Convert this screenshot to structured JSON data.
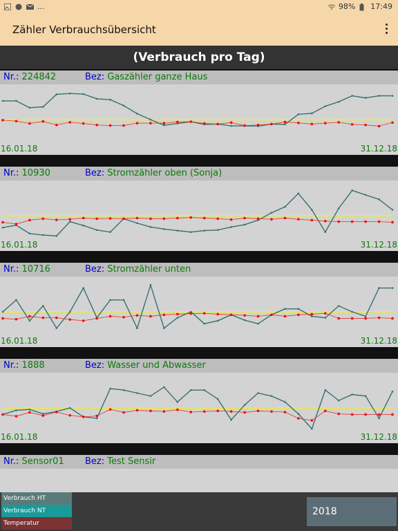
{
  "statusbar": {
    "left_text": "...",
    "battery": "98%",
    "time": "17:49"
  },
  "app": {
    "title": "Zähler Verbrauchsübersicht"
  },
  "view": {
    "header": "(Verbrauch pro Tag)"
  },
  "labels": {
    "nr": "Nr.:",
    "bez": "Bez:"
  },
  "meters": [
    {
      "nr": "224842",
      "bez": "Gaszähler ganze Haus",
      "date_start": "16.01.18",
      "date_end": "31.12.18",
      "chart_data": {
        "type": "line",
        "series": [
          {
            "key": "verbrauch",
            "color": "#3a6f6f",
            "values": [
              63,
              63,
              40,
              43,
              85,
              88,
              86,
              70,
              67,
              47,
              20,
              0,
              -19,
              -13,
              -7,
              -16,
              -15,
              -21,
              -21,
              -22,
              -15,
              -16,
              18,
              21,
              45,
              60,
              80,
              73,
              80,
              80
            ]
          },
          {
            "key": "temperatur",
            "color": "#e03030",
            "values": [
              -2,
              -5,
              -13,
              -6,
              -18,
              -9,
              -13,
              -18,
              -20,
              -20,
              -12,
              -12,
              -12,
              -8,
              -7,
              -13,
              -15,
              -10,
              -20,
              -18,
              -15,
              -8,
              -11,
              -15,
              -12,
              -9,
              -16,
              -18,
              -22,
              -10
            ]
          }
        ],
        "ylim": [
          -100,
          100
        ]
      }
    },
    {
      "nr": "10930",
      "bez": "Stromzähler oben (Sonja)",
      "date_start": "16.01.18",
      "date_end": "31.12.18",
      "chart_data": {
        "type": "line",
        "series": [
          {
            "key": "verbrauch",
            "color": "#3a6f6f",
            "values": [
              -40,
              -32,
              -60,
              -65,
              -68,
              -20,
              -33,
              -48,
              -55,
              -10,
              -25,
              -38,
              -45,
              -50,
              -55,
              -50,
              -48,
              -38,
              -30,
              -15,
              10,
              30,
              75,
              20,
              -55,
              25,
              85,
              70,
              55,
              20
            ]
          },
          {
            "key": "temperatur",
            "color": "#e03030",
            "values": [
              -22,
              -28,
              -15,
              -10,
              -14,
              -12,
              -8,
              -10,
              -9,
              -10,
              -8,
              -10,
              -10,
              -8,
              -6,
              -8,
              -10,
              -13,
              -8,
              -10,
              -12,
              -8,
              -12,
              -15,
              -18,
              -20,
              -20,
              -20,
              -20,
              -22
            ]
          }
        ],
        "ylim": [
          -100,
          100
        ]
      }
    },
    {
      "nr": "10716",
      "bez": "Stromzähler unten",
      "date_start": "16.01.18",
      "date_end": "31.12.18",
      "chart_data": {
        "type": "line",
        "series": [
          {
            "key": "verbrauch",
            "color": "#3a6f6f",
            "values": [
              0,
              40,
              -30,
              20,
              -55,
              0,
              80,
              -20,
              40,
              40,
              -55,
              90,
              -55,
              -20,
              0,
              -40,
              -30,
              -10,
              -28,
              -40,
              -10,
              10,
              10,
              -15,
              -20,
              20,
              0,
              -15,
              80,
              80
            ]
          },
          {
            "key": "temperatur",
            "color": "#e03030",
            "values": [
              -22,
              -25,
              -15,
              -20,
              -20,
              -26,
              -30,
              -22,
              -15,
              -18,
              -12,
              -15,
              -10,
              -8,
              -6,
              -5,
              -8,
              -10,
              -12,
              -15,
              -10,
              -15,
              -10,
              -8,
              -5,
              -22,
              -22,
              -22,
              -20,
              -22
            ]
          }
        ],
        "ylim": [
          -100,
          100
        ]
      }
    },
    {
      "nr": "1888",
      "bez": "Wasser und Abwasser",
      "date_start": "16.01.18",
      "date_end": "31.12.18",
      "chart_data": {
        "type": "line",
        "series": [
          {
            "key": "verbrauch",
            "color": "#3a6f6f",
            "values": [
              -22,
              -8,
              -5,
              -20,
              -12,
              0,
              -30,
              -35,
              65,
              60,
              50,
              40,
              70,
              20,
              60,
              60,
              30,
              -40,
              10,
              50,
              40,
              20,
              -20,
              -70,
              60,
              25,
              45,
              40,
              -35,
              55
            ]
          },
          {
            "key": "temperatur",
            "color": "#e03030",
            "values": [
              -22,
              -28,
              -15,
              -26,
              -14,
              -25,
              -30,
              -27,
              -5,
              -15,
              -8,
              -10,
              -12,
              -6,
              -14,
              -12,
              -10,
              -12,
              -15,
              -10,
              -12,
              -14,
              -35,
              -42,
              -10,
              -20,
              -22,
              -22,
              -22,
              -22
            ]
          }
        ],
        "ylim": [
          -100,
          100
        ]
      }
    }
  ],
  "partial_meter": {
    "nr": "Sensor01",
    "bez": "Test Sensir"
  },
  "legend": [
    {
      "label": "Verbrauch HT",
      "color": "#5b7a7a"
    },
    {
      "label": "Verbrauch NT",
      "color": "#1a9a9a"
    },
    {
      "label": "Temperatur",
      "color": "#7a3232"
    }
  ],
  "year": "2018"
}
